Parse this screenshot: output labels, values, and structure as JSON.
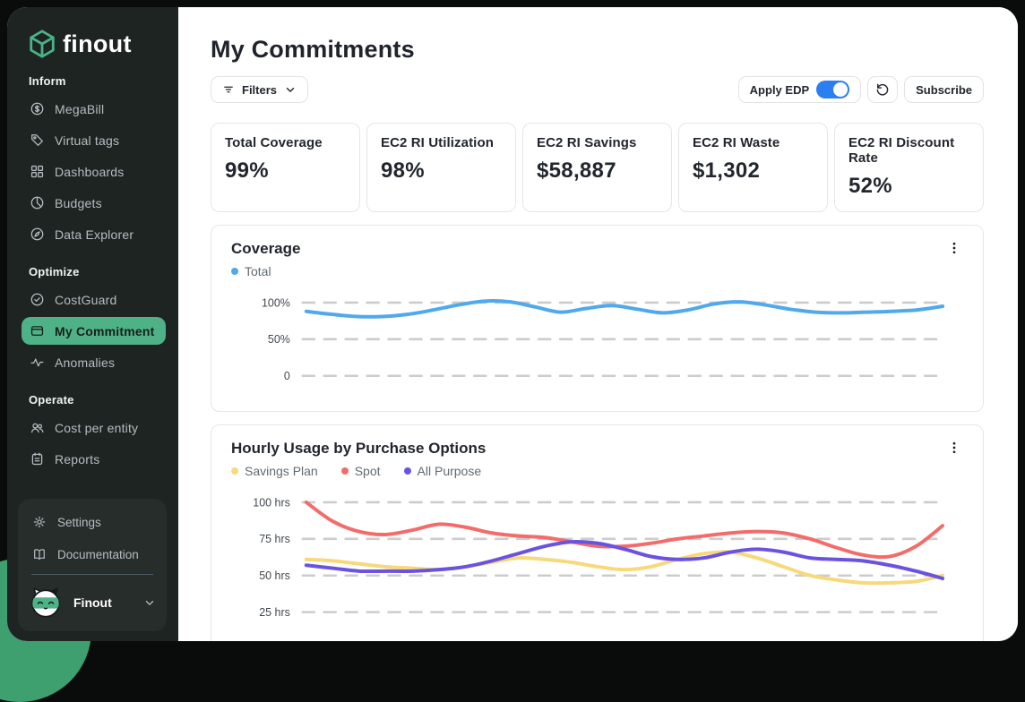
{
  "sidebar": {
    "logo_text": "finout",
    "sections": [
      {
        "label": "Inform",
        "items": [
          {
            "label": "MegaBill",
            "icon": "dollar-circle"
          },
          {
            "label": "Virtual tags",
            "icon": "tag"
          },
          {
            "label": "Dashboards",
            "icon": "grid"
          },
          {
            "label": "Budgets",
            "icon": "pie"
          },
          {
            "label": "Data Explorer",
            "icon": "compass"
          }
        ]
      },
      {
        "label": "Optimize",
        "items": [
          {
            "label": "CostGuard",
            "icon": "badge-check"
          },
          {
            "label": "My Commitment",
            "icon": "wallet",
            "active": true
          },
          {
            "label": "Anomalies",
            "icon": "pulse"
          }
        ]
      },
      {
        "label": "Operate",
        "items": [
          {
            "label": "Cost per entity",
            "icon": "users"
          },
          {
            "label": "Reports",
            "icon": "clipboard"
          }
        ]
      }
    ],
    "footer": {
      "items": [
        {
          "label": "Settings",
          "icon": "gear"
        },
        {
          "label": "Documentation",
          "icon": "book"
        }
      ],
      "user_name": "Finout"
    },
    "colors": {
      "background": "#1e2421",
      "active_item": "#4fb286",
      "footer_card": "#272d2a"
    }
  },
  "header": {
    "title": "My Commitments",
    "filters_label": "Filters",
    "apply_edp_label": "Apply EDP",
    "apply_edp_enabled": true,
    "subscribe_label": "Subscribe",
    "toggle_color": "#2b7ff0"
  },
  "stats": [
    {
      "label": "Total Coverage",
      "value": "99%"
    },
    {
      "label": "EC2 RI Utilization",
      "value": "98%"
    },
    {
      "label": "EC2 RI Savings",
      "value": "$58,887"
    },
    {
      "label": "EC2 RI Waste",
      "value": "$1,302"
    },
    {
      "label": "EC2 RI Discount Rate",
      "value": "52%"
    }
  ],
  "chart_data": [
    {
      "type": "line",
      "title": "Coverage",
      "xlabel": "",
      "ylabel": "",
      "ylim": [
        0,
        110
      ],
      "grid": "dashed-horizontal",
      "legend_position": "top-left",
      "y_ticks": [
        {
          "label": "100%",
          "value": 100
        },
        {
          "label": "50%",
          "value": 50
        },
        {
          "label": "0",
          "value": 0
        }
      ],
      "series": [
        {
          "name": "Total",
          "color": "#4FA9EC",
          "values": [
            88,
            84,
            81,
            81,
            84,
            90,
            97,
            102,
            101,
            94,
            87,
            92,
            96,
            91,
            86,
            90,
            98,
            101,
            97,
            91,
            87,
            86,
            87,
            88,
            90,
            95
          ]
        }
      ]
    },
    {
      "type": "line",
      "title": "Hourly Usage by Purchase Options",
      "xlabel": "",
      "ylabel": "hrs",
      "ylim": [
        0,
        110
      ],
      "grid": "dashed-horizontal",
      "legend_position": "top-left",
      "y_ticks": [
        {
          "label": "100 hrs",
          "value": 100
        },
        {
          "label": "75 hrs",
          "value": 75
        },
        {
          "label": "50 hrs",
          "value": 50
        },
        {
          "label": "25 hrs",
          "value": 25
        }
      ],
      "series": [
        {
          "name": "Savings Plan",
          "color": "#F7D97B",
          "values": [
            61,
            60,
            58,
            56,
            55,
            54,
            56,
            59,
            62,
            61,
            59,
            56,
            54,
            56,
            61,
            65,
            66,
            62,
            56,
            50,
            47,
            45,
            45,
            46,
            50
          ]
        },
        {
          "name": "Spot",
          "color": "#F26D6A",
          "values": [
            100,
            87,
            80,
            78,
            81,
            85,
            83,
            79,
            77,
            76,
            73,
            70,
            70,
            72,
            75,
            77,
            79,
            80,
            79,
            75,
            69,
            64,
            63,
            70,
            84
          ]
        },
        {
          "name": "All Purpose",
          "color": "#6A53E0",
          "values": [
            57,
            55,
            53,
            53,
            53,
            54,
            56,
            60,
            65,
            70,
            73,
            72,
            68,
            63,
            61,
            62,
            66,
            68,
            66,
            62,
            61,
            60,
            57,
            53,
            48
          ]
        }
      ]
    }
  ]
}
